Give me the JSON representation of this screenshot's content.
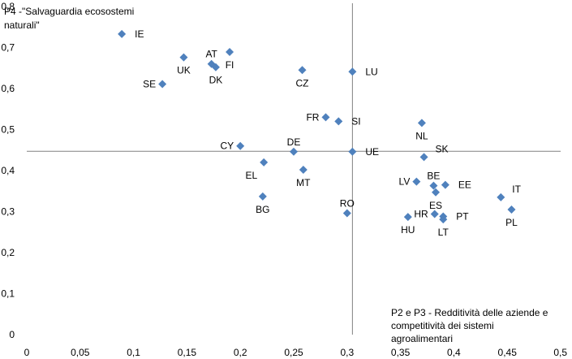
{
  "chart_data": {
    "type": "scatter",
    "title": "",
    "xlabel_lines": [
      "P2 e P3 - Redditività delle aziende e",
      "competitività dei sistemi",
      "agroalimentari"
    ],
    "ylabel_lines": [
      "P4 -\"Salvaguardia ecosostemi",
      "naturali\""
    ],
    "xlim": [
      0,
      0.5
    ],
    "ylim": [
      0,
      0.8
    ],
    "x_ticks": [
      {
        "value": 0,
        "label": "0"
      },
      {
        "value": 0.05,
        "label": "0,05"
      },
      {
        "value": 0.1,
        "label": "0,1"
      },
      {
        "value": 0.15,
        "label": "0,15"
      },
      {
        "value": 0.2,
        "label": "0,2"
      },
      {
        "value": 0.25,
        "label": "0,25"
      },
      {
        "value": 0.3,
        "label": "0,3"
      },
      {
        "value": 0.35,
        "label": "0,35"
      },
      {
        "value": 0.4,
        "label": "0,4"
      },
      {
        "value": 0.45,
        "label": "0,45"
      },
      {
        "value": 0.5,
        "label": "0,5"
      }
    ],
    "y_ticks": [
      {
        "value": 0,
        "label": "0"
      },
      {
        "value": 0.1,
        "label": "0,1"
      },
      {
        "value": 0.2,
        "label": "0,2"
      },
      {
        "value": 0.3,
        "label": "0,3"
      },
      {
        "value": 0.4,
        "label": "0,4"
      },
      {
        "value": 0.5,
        "label": "0,5"
      },
      {
        "value": 0.6,
        "label": "0,6"
      },
      {
        "value": 0.7,
        "label": "0,7"
      },
      {
        "value": 0.8,
        "label": "0,8"
      }
    ],
    "crossing_lines": {
      "x": 0.305,
      "y": 0.447
    },
    "marker_color": "#4F81BD",
    "grid": false,
    "points": [
      {
        "label": "IE",
        "x": 0.089,
        "y": 0.733,
        "label_pos": "right"
      },
      {
        "label": "UK",
        "x": 0.147,
        "y": 0.676,
        "label_pos": "below"
      },
      {
        "label": "SE",
        "x": 0.127,
        "y": 0.611,
        "label_pos": "left"
      },
      {
        "label": "AT",
        "x": 0.173,
        "y": 0.66,
        "label_pos": "above"
      },
      {
        "label": "DK",
        "x": 0.177,
        "y": 0.652,
        "label_pos": "below"
      },
      {
        "label": "FI",
        "x": 0.19,
        "y": 0.689,
        "label_pos": "below"
      },
      {
        "label": "CZ",
        "x": 0.258,
        "y": 0.645,
        "label_pos": "below"
      },
      {
        "label": "LU",
        "x": 0.305,
        "y": 0.641,
        "label_pos": "right"
      },
      {
        "label": "FR",
        "x": 0.28,
        "y": 0.53,
        "label_pos": "left"
      },
      {
        "label": "SI",
        "x": 0.292,
        "y": 0.52,
        "label_pos": "right"
      },
      {
        "label": "CY",
        "x": 0.2,
        "y": 0.46,
        "label_pos": "left"
      },
      {
        "label": "DE",
        "x": 0.25,
        "y": 0.446,
        "label_pos": "above"
      },
      {
        "label": "UE",
        "x": 0.305,
        "y": 0.446,
        "label_pos": "right"
      },
      {
        "label": "EL",
        "x": 0.222,
        "y": 0.42,
        "label_pos": "belowleft"
      },
      {
        "label": "MT",
        "x": 0.259,
        "y": 0.402,
        "label_pos": "below"
      },
      {
        "label": "BG",
        "x": 0.221,
        "y": 0.337,
        "label_pos": "below"
      },
      {
        "label": "RO",
        "x": 0.3,
        "y": 0.296,
        "label_pos": "above"
      },
      {
        "label": "NL",
        "x": 0.37,
        "y": 0.516,
        "label_pos": "below"
      },
      {
        "label": "SK",
        "x": 0.372,
        "y": 0.433,
        "label_pos": "aboveright"
      },
      {
        "label": "LV",
        "x": 0.365,
        "y": 0.373,
        "label_pos": "left"
      },
      {
        "label": "BE",
        "x": 0.381,
        "y": 0.363,
        "label_pos": "above"
      },
      {
        "label": "EE",
        "x": 0.392,
        "y": 0.365,
        "label_pos": "right"
      },
      {
        "label": "ES",
        "x": 0.383,
        "y": 0.347,
        "label_pos": "below"
      },
      {
        "label": "HR",
        "x": 0.382,
        "y": 0.294,
        "label_pos": "left"
      },
      {
        "label": "PT",
        "x": 0.39,
        "y": 0.288,
        "label_pos": "right"
      },
      {
        "label": "LT",
        "x": 0.39,
        "y": 0.281,
        "label_pos": "below"
      },
      {
        "label": "HU",
        "x": 0.357,
        "y": 0.287,
        "label_pos": "below"
      },
      {
        "label": "IT",
        "x": 0.444,
        "y": 0.335,
        "label_pos": "aboveright"
      },
      {
        "label": "PL",
        "x": 0.454,
        "y": 0.305,
        "label_pos": "below"
      }
    ]
  }
}
